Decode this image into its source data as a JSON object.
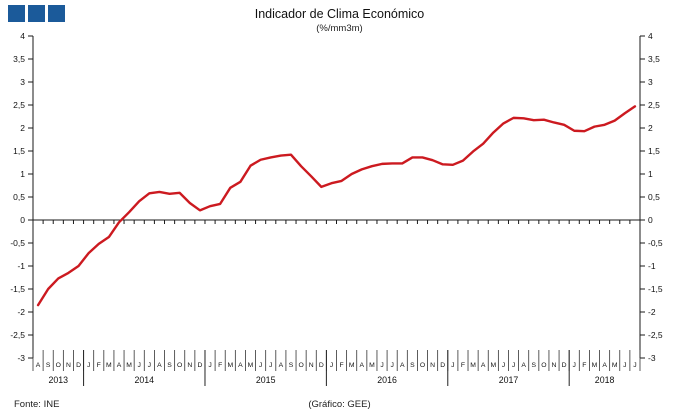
{
  "header": {
    "title": "Indicador de Clima Económico",
    "subtitle": "(%/mm3m)",
    "logo_squares": 3
  },
  "footer": {
    "source": "Fonte: INE",
    "credit": "(Gráfico: GEE)"
  },
  "colors": {
    "line": "#cc1a20",
    "logo_blue": "#1b5a9a",
    "axis": "#1a1a1a",
    "tick_text": "#111111"
  },
  "chart_data": {
    "type": "line",
    "title": "Indicador de Clima Económico",
    "subtitle": "(%/mm3m)",
    "ylim": [
      -3,
      4
    ],
    "ytick_step": 0.5,
    "ytick_labels": [
      "4",
      "3,5",
      "3",
      "2,5",
      "2",
      "1,5",
      "1",
      "0,5",
      "0",
      "-0,5",
      "-1",
      "-1,5",
      "-2",
      "-2,5",
      "-3"
    ],
    "grid": false,
    "legend_position": "none",
    "axes": "mirrored left and right y-axes, zero baseline with monthly ticks",
    "years": [
      {
        "label": "2013",
        "months": [
          "A",
          "S",
          "O",
          "N",
          "D"
        ]
      },
      {
        "label": "2014",
        "months": [
          "J",
          "F",
          "M",
          "A",
          "M",
          "J",
          "J",
          "A",
          "S",
          "O",
          "N",
          "D"
        ]
      },
      {
        "label": "2015",
        "months": [
          "J",
          "F",
          "M",
          "A",
          "M",
          "J",
          "J",
          "A",
          "S",
          "O",
          "N",
          "D"
        ]
      },
      {
        "label": "2016",
        "months": [
          "J",
          "F",
          "M",
          "A",
          "M",
          "J",
          "J",
          "A",
          "S",
          "O",
          "N",
          "D"
        ]
      },
      {
        "label": "2017",
        "months": [
          "J",
          "F",
          "M",
          "A",
          "M",
          "J",
          "J",
          "A",
          "S",
          "O",
          "N",
          "D"
        ]
      },
      {
        "label": "2018",
        "months": [
          "J",
          "F",
          "M",
          "A",
          "M",
          "J",
          "J"
        ]
      }
    ],
    "series": [
      {
        "name": "Indicador de Clima Económico (%/mm3m)",
        "values": [
          -1.85,
          -1.5,
          -1.27,
          -1.15,
          -1.0,
          -0.72,
          -0.52,
          -0.37,
          -0.05,
          0.17,
          0.41,
          0.58,
          0.61,
          0.57,
          0.59,
          0.37,
          0.21,
          0.3,
          0.35,
          0.7,
          0.83,
          1.18,
          1.31,
          1.36,
          1.4,
          1.42,
          1.17,
          0.95,
          0.72,
          0.8,
          0.85,
          1.0,
          1.1,
          1.17,
          1.22,
          1.23,
          1.23,
          1.36,
          1.36,
          1.3,
          1.21,
          1.2,
          1.29,
          1.49,
          1.66,
          1.9,
          2.1,
          2.22,
          2.21,
          2.17,
          2.18,
          2.12,
          2.07,
          1.94,
          1.93,
          2.03,
          2.07,
          2.16,
          2.32,
          2.47
        ]
      }
    ]
  }
}
